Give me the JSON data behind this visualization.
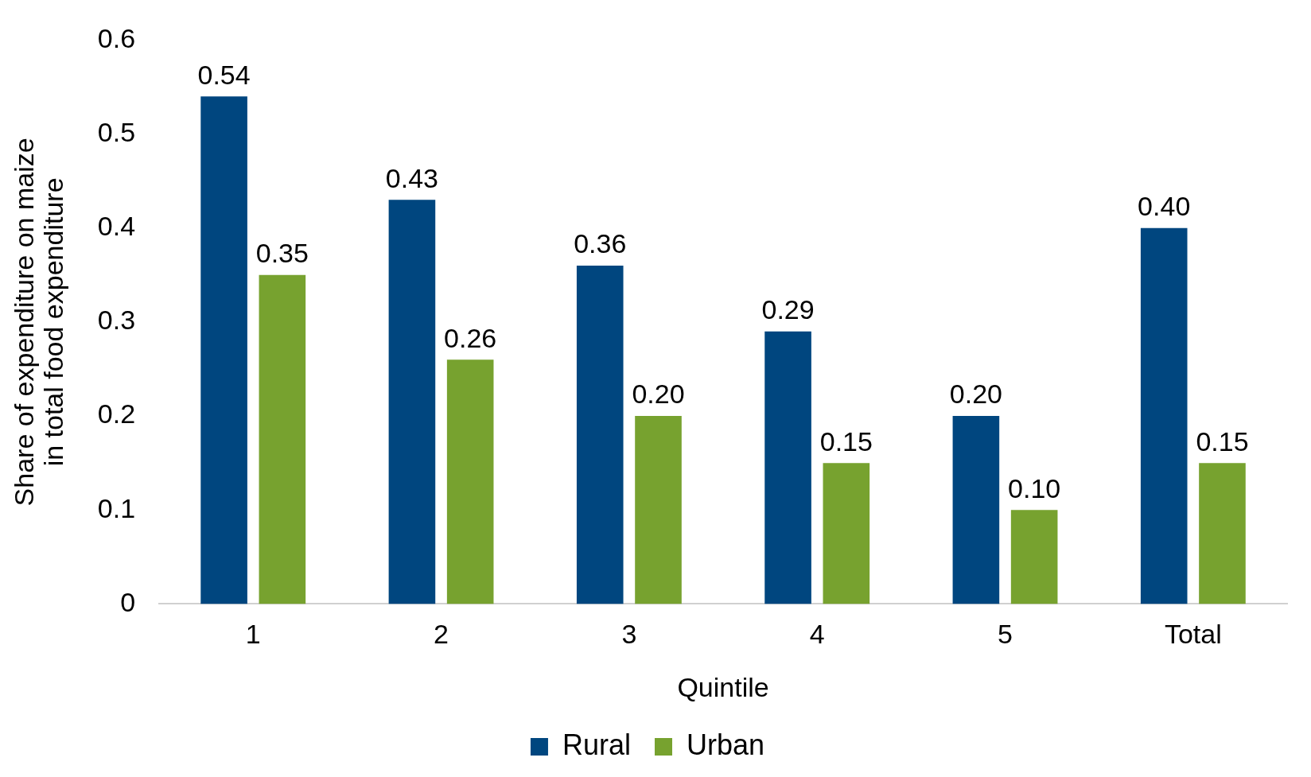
{
  "chart_data": {
    "type": "bar",
    "xlabel": "Quintile",
    "ylabel": "Share of expenditure on maize in total food expenditure",
    "categories": [
      "1",
      "2",
      "3",
      "4",
      "5",
      "Total"
    ],
    "series": [
      {
        "name": "Rural",
        "color": "#00467f",
        "values": [
          0.54,
          0.43,
          0.36,
          0.29,
          0.2,
          0.4
        ],
        "value_labels": [
          "0.54",
          "0.43",
          "0.36",
          "0.29",
          "0.20",
          "0.40"
        ]
      },
      {
        "name": "Urban",
        "color": "#77a22f",
        "values": [
          0.35,
          0.26,
          0.2,
          0.15,
          0.1,
          0.15
        ],
        "value_labels": [
          "0.35",
          "0.26",
          "0.20",
          "0.15",
          "0.10",
          "0.15"
        ]
      }
    ],
    "ylim": [
      0,
      0.6
    ],
    "yticks": [
      0,
      0.1,
      0.2,
      0.3,
      0.4,
      0.5,
      0.6
    ],
    "grid": false,
    "legend": "bottom"
  }
}
